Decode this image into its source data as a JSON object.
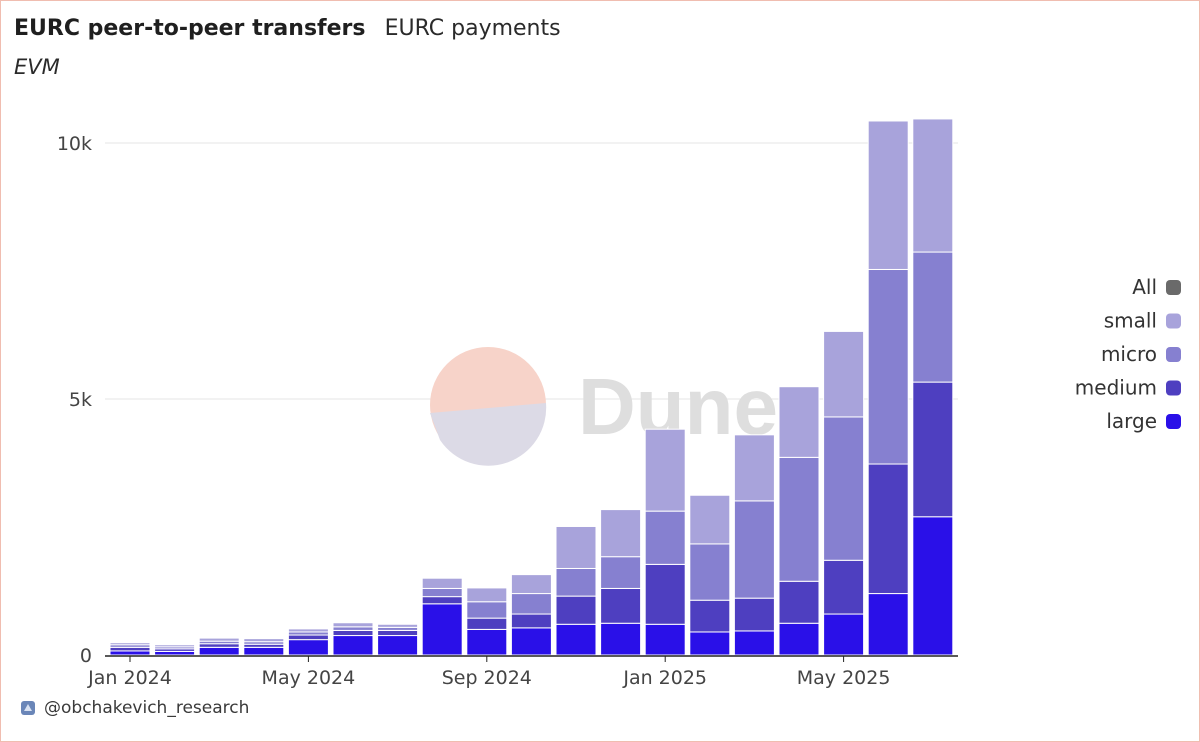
{
  "header": {
    "title": "EURC peer-to-peer transfers",
    "tab": "EURC payments",
    "subtitle": "EVM"
  },
  "watermark": "Dune",
  "footer": {
    "handle": "@obchakevich_research"
  },
  "colors": {
    "all": "#6a6a6a",
    "small": "#a8a3db",
    "micro": "#8680d0",
    "medium": "#4e3fc0",
    "large": "#2a10e8"
  },
  "chart_data": {
    "type": "bar",
    "stacked": true,
    "categories": [
      "2024-01",
      "2024-02",
      "2024-03",
      "2024-04",
      "2024-05",
      "2024-06",
      "2024-07",
      "2024-08",
      "2024-09",
      "2024-10",
      "2024-11",
      "2024-12",
      "2025-01",
      "2025-02",
      "2025-03",
      "2025-04",
      "2025-05",
      "2025-06",
      "2025-07"
    ],
    "x_ticks": [
      {
        "index": 0,
        "label": "Jan 2024"
      },
      {
        "index": 4,
        "label": "May 2024"
      },
      {
        "index": 8,
        "label": "Sep 2024"
      },
      {
        "index": 12,
        "label": "Jan 2025"
      },
      {
        "index": 16,
        "label": "May 2025"
      }
    ],
    "y_ticks": [
      {
        "value": 0,
        "label": "0"
      },
      {
        "value": 5000,
        "label": "5k"
      },
      {
        "value": 10000,
        "label": "10k"
      }
    ],
    "ylim": [
      0,
      10500
    ],
    "grid": true,
    "legend_position": "right",
    "legend": [
      "All",
      "small",
      "micro",
      "medium",
      "large"
    ],
    "series": [
      {
        "name": "large",
        "values": [
          80,
          70,
          150,
          150,
          300,
          380,
          380,
          1000,
          500,
          530,
          600,
          620,
          600,
          450,
          470,
          620,
          800,
          1200,
          2700
        ]
      },
      {
        "name": "medium",
        "values": [
          70,
          50,
          70,
          60,
          90,
          100,
          100,
          140,
          220,
          270,
          550,
          680,
          1170,
          620,
          640,
          820,
          1050,
          2530,
          2630
        ]
      },
      {
        "name": "micro",
        "values": [
          50,
          40,
          50,
          50,
          60,
          70,
          60,
          160,
          320,
          400,
          540,
          620,
          1040,
          1100,
          1900,
          2420,
          2800,
          3800,
          2540
        ]
      },
      {
        "name": "small",
        "values": [
          40,
          40,
          60,
          60,
          60,
          80,
          60,
          200,
          270,
          370,
          820,
          920,
          1600,
          950,
          1290,
          1380,
          1670,
          2900,
          2600
        ]
      }
    ]
  }
}
